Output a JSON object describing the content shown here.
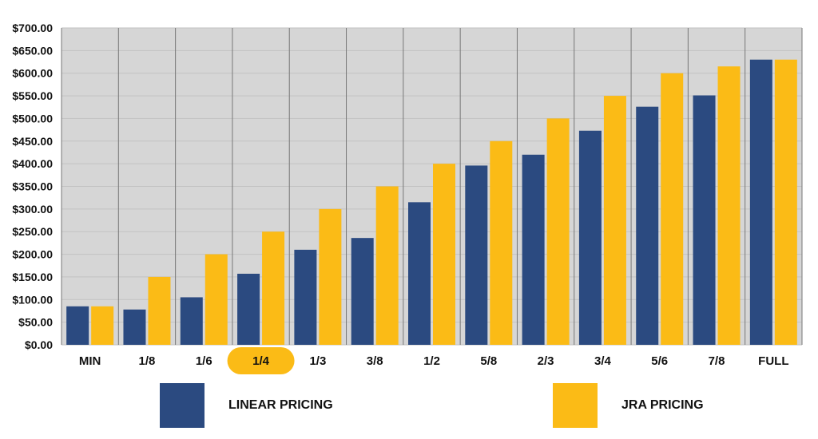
{
  "chart_data": {
    "type": "bar",
    "title": "",
    "xlabel": "",
    "ylabel": "",
    "ylim": [
      0,
      700
    ],
    "y_ticks": [
      "$0.00",
      "$50.00",
      "$100.00",
      "$150.00",
      "$200.00",
      "$250.00",
      "$300.00",
      "$350.00",
      "$400.00",
      "$450.00",
      "$500.00",
      "$550.00",
      "$600.00",
      "$650.00",
      "$700.00"
    ],
    "categories": [
      "MIN",
      "1/8",
      "1/6",
      "1/4",
      "1/3",
      "3/8",
      "1/2",
      "5/8",
      "2/3",
      "3/4",
      "5/6",
      "7/8",
      "FULL"
    ],
    "highlighted_category": "1/4",
    "grid": true,
    "legend_position": "bottom",
    "series": [
      {
        "name": "LINEAR PRICING",
        "color": "#2b4a80",
        "values": [
          85,
          78,
          105,
          157,
          210,
          236,
          315,
          396,
          420,
          473,
          526,
          551,
          630
        ]
      },
      {
        "name": "JRA PRICING",
        "color": "#fbbb16",
        "values": [
          85,
          150,
          200,
          250,
          300,
          350,
          400,
          450,
          500,
          550,
          600,
          615,
          630
        ]
      }
    ],
    "colors": {
      "plot_background": "#d6d6d6",
      "gridline": "#c2c2c2",
      "divider": "#777777",
      "highlight": "#fbbb16"
    }
  }
}
